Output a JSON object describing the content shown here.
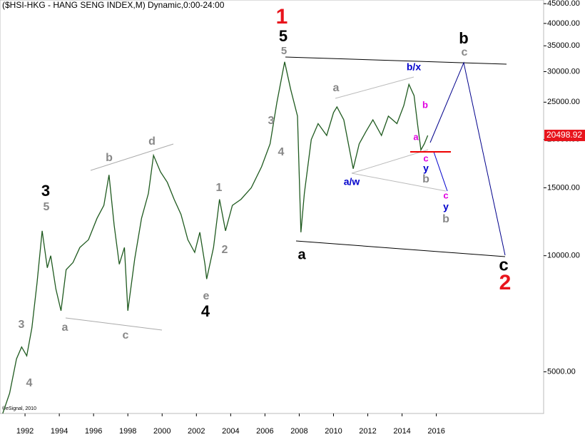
{
  "chart_data": {
    "type": "line",
    "title": "($HSI-HKG - HANG SENG INDEX,M) Dynamic,0:00-24:00",
    "log_scale": true,
    "xlim": [
      1990.54,
      2022.26
    ],
    "xticks": [
      1992,
      1994,
      1996,
      1998,
      2000,
      2002,
      2004,
      2006,
      2008,
      2010,
      2012,
      2014,
      2016
    ],
    "ylim": [
      3900,
      46000
    ],
    "yticks": [
      {
        "value": 5000,
        "label": "5000.00"
      },
      {
        "value": 10000,
        "label": "10000.00"
      },
      {
        "value": 15000,
        "label": "15000.00"
      },
      {
        "value": 20000,
        "label": "20000.00"
      },
      {
        "value": 25000,
        "label": "25000.00"
      },
      {
        "value": 30000,
        "label": "30000.00"
      },
      {
        "value": 35000,
        "label": "35000.00"
      },
      {
        "value": 40000,
        "label": "40000.00"
      },
      {
        "value": 45000,
        "label": "45000.00"
      }
    ],
    "last_value": 20498.92,
    "last_value_color": "#e8141c",
    "series": [
      {
        "name": "$HSI-HKG",
        "color": "#1f5a1f",
        "x": [
          1990.7,
          1991.1,
          1991.5,
          1991.8,
          1992.1,
          1992.4,
          1992.7,
          1993.0,
          1993.3,
          1993.5,
          1993.8,
          1994.1,
          1994.4,
          1994.8,
          1995.2,
          1995.7,
          1996.2,
          1996.6,
          1996.9,
          1997.2,
          1997.5,
          1997.8,
          1998.0,
          1998.4,
          1998.8,
          1999.2,
          1999.5,
          1999.9,
          2000.3,
          2000.7,
          2001.1,
          2001.5,
          2001.9,
          2002.2,
          2002.5,
          2002.6,
          2003.0,
          2003.35,
          2003.7,
          2004.1,
          2004.6,
          2005.2,
          2005.8,
          2006.3,
          2006.7,
          2007.15,
          2007.5,
          2007.9,
          2008.1,
          2008.3,
          2008.7,
          2009.1,
          2009.6,
          2010.0,
          2010.2,
          2010.6,
          2011.15,
          2011.5,
          2011.9,
          2012.3,
          2012.8,
          2013.2,
          2013.7,
          2014.1,
          2014.4,
          2014.7,
          2014.9,
          2015.1,
          2015.3,
          2015.5
        ],
        "values": [
          3900,
          4400,
          5400,
          5800,
          5500,
          6500,
          8500,
          11600,
          9300,
          10000,
          8200,
          7200,
          9200,
          9600,
          10500,
          11000,
          12500,
          13500,
          16200,
          12000,
          9500,
          10500,
          7200,
          9800,
          12500,
          14500,
          18200,
          16500,
          15500,
          14000,
          12800,
          11000,
          10200,
          11500,
          9500,
          8700,
          10500,
          14000,
          11600,
          13500,
          14000,
          15000,
          17000,
          19500,
          25000,
          31800,
          27000,
          23000,
          11500,
          14500,
          20000,
          22000,
          20500,
          23500,
          24300,
          22500,
          16800,
          19500,
          21000,
          22500,
          20500,
          23000,
          22000,
          24500,
          27800,
          26000,
          22000,
          18800,
          19500,
          20498.92
        ]
      }
    ],
    "annotations": [
      "1",
      "5",
      "5",
      "b/x",
      "b",
      "a",
      "c",
      "y",
      "b",
      "c",
      "y",
      "b",
      "a",
      "a/w",
      "b",
      "c",
      "a",
      "c",
      "2",
      "3",
      "4",
      "1",
      "2",
      "e",
      "4",
      "3",
      "5",
      "b",
      "d",
      "a",
      "c",
      "3",
      "4"
    ],
    "copyright": "©eSignal, 2010"
  }
}
